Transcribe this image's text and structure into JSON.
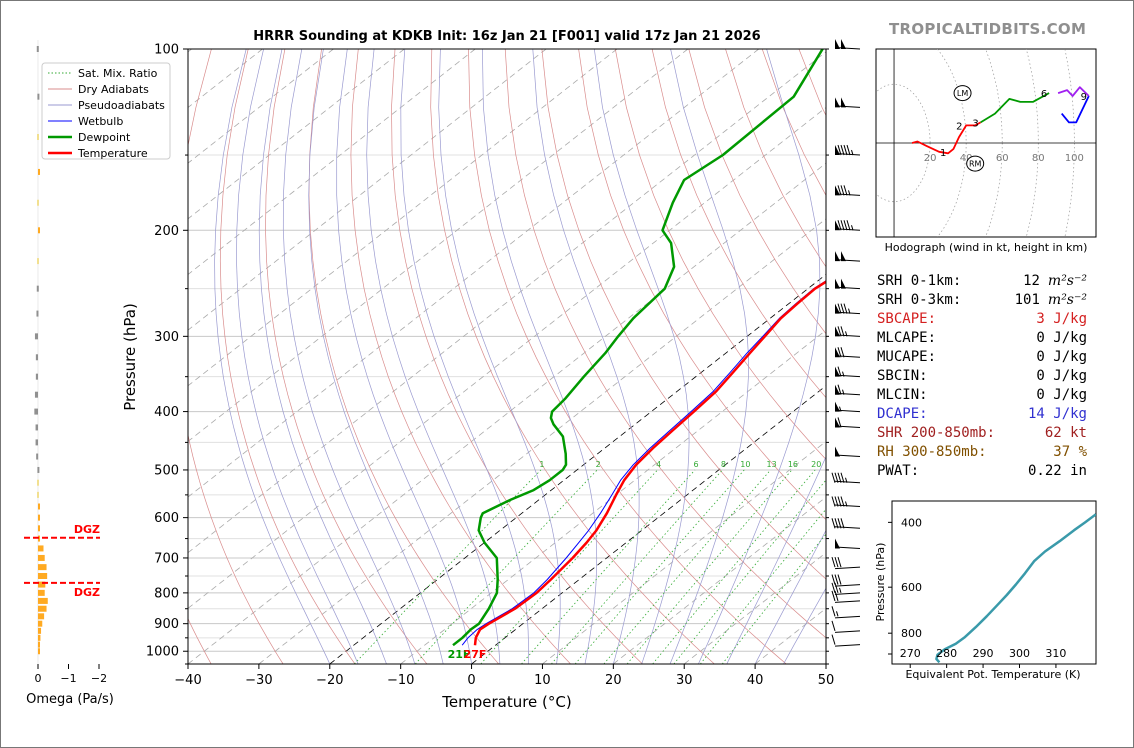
{
  "brand": "TROPICALTIDBITS.COM",
  "colors": {
    "temperature": "#ff0000",
    "dewpoint": "#009900",
    "wetbulb": "#0000ff",
    "dry_adiabat": "#d98c8c",
    "pseudoadiabat": "#9a9ad0",
    "mixing_ratio": "#33aa33",
    "omega": "#ffaa22",
    "theta_e": "#3a9aaa",
    "hodo_low": "#ff0000",
    "hodo_mid": "#009900",
    "hodo_upper": "#0000ff",
    "hodo_top": "#a020f0",
    "cape": "#d42020",
    "dcape": "#3030d0",
    "shear": "#a02020",
    "rh": "#805000"
  },
  "chart_data": [
    {
      "type": "line",
      "id": "skewt",
      "title": "HRRR Sounding at KDKB Init: 16z Jan 21 [F001] valid 17z Jan 21 2026",
      "xlabel": "Temperature (°C)",
      "ylabel": "Pressure (hPa)",
      "xlim": [
        -40,
        50
      ],
      "ylim": [
        1050,
        100
      ],
      "y_scale": "log",
      "x_ticks": [
        -40,
        -30,
        -20,
        -10,
        0,
        10,
        20,
        30,
        40,
        50
      ],
      "y_ticks": [
        100,
        200,
        300,
        400,
        500,
        600,
        700,
        800,
        900,
        1000
      ],
      "grid": true,
      "legend_position": "top-left",
      "legend": [
        "Sat. Mix. Ratio",
        "Dry Adiabats",
        "Pseudoadiabats",
        "Wetbulb",
        "Dewpoint",
        "Temperature"
      ],
      "mixing_ratio_labels": [
        "1",
        "2",
        "4",
        "6",
        "8",
        "10",
        "13",
        "16",
        "20",
        "24",
        "30",
        "36"
      ],
      "surface_labels": {
        "dewpoint": "21F",
        "temperature": "27F"
      },
      "series": [
        {
          "name": "Temperature",
          "points": [
            [
              -2.9,
              977
            ],
            [
              -4.1,
              950
            ],
            [
              -5.0,
              920
            ],
            [
              -4.8,
              900
            ],
            [
              -3.8,
              850
            ],
            [
              -3.6,
              800
            ],
            [
              -4.0,
              760
            ],
            [
              -4.8,
              700
            ],
            [
              -5.6,
              660
            ],
            [
              -6.4,
              630
            ],
            [
              -8.0,
              590
            ],
            [
              -10.0,
              550
            ],
            [
              -11.5,
              520
            ],
            [
              -12.6,
              490
            ],
            [
              -13.2,
              460
            ],
            [
              -13.6,
              430
            ],
            [
              -14.0,
              400
            ],
            [
              -14.5,
              370
            ],
            [
              -15.5,
              345
            ],
            [
              -16.6,
              320
            ],
            [
              -17.5,
              300
            ],
            [
              -18.5,
              280
            ],
            [
              -18.8,
              265
            ],
            [
              -19.0,
              250
            ],
            [
              -18.3,
              235
            ],
            [
              -17.2,
              220
            ],
            [
              -16.0,
              205
            ],
            [
              -15.0,
              195
            ],
            [
              -13.3,
              175
            ],
            [
              -10.8,
              150
            ],
            [
              -8.8,
              135
            ],
            [
              -5.5,
              120
            ],
            [
              -3.0,
              110
            ],
            [
              -1.5,
              100
            ]
          ]
        },
        {
          "name": "Wetbulb",
          "points": [
            [
              -4.7,
              977
            ],
            [
              -5.2,
              950
            ],
            [
              -5.4,
              920
            ],
            [
              -5.2,
              900
            ],
            [
              -4.2,
              850
            ],
            [
              -4.0,
              800
            ],
            [
              -4.5,
              760
            ],
            [
              -5.7,
              700
            ],
            [
              -6.7,
              660
            ],
            [
              -7.5,
              630
            ],
            [
              -8.9,
              590
            ],
            [
              -10.6,
              550
            ],
            [
              -12.0,
              520
            ],
            [
              -13.0,
              490
            ],
            [
              -13.6,
              460
            ],
            [
              -14.0,
              430
            ],
            [
              -14.4,
              400
            ],
            [
              -14.9,
              370
            ],
            [
              -15.9,
              345
            ],
            [
              -17.0,
              320
            ],
            [
              -17.8,
              300
            ],
            [
              -18.7,
              280
            ],
            [
              -19.0,
              265
            ],
            [
              -19.2,
              250
            ],
            [
              -18.5,
              235
            ],
            [
              -17.3,
              220
            ],
            [
              -16.2,
              205
            ],
            [
              -15.2,
              195
            ],
            [
              -13.6,
              175
            ],
            [
              -11.2,
              150
            ],
            [
              -9.3,
              135
            ],
            [
              -6.0,
              120
            ],
            [
              -3.5,
              110
            ],
            [
              -2.0,
              100
            ]
          ]
        },
        {
          "name": "Dewpoint",
          "points": [
            [
              -6.0,
              977
            ],
            [
              -6.0,
              950
            ],
            [
              -6.3,
              920
            ],
            [
              -6.2,
              900
            ],
            [
              -7.5,
              850
            ],
            [
              -9.2,
              800
            ],
            [
              -11.5,
              760
            ],
            [
              -15.5,
              700
            ],
            [
              -20.0,
              660
            ],
            [
              -23.0,
              630
            ],
            [
              -25.0,
              600
            ],
            [
              -25.5,
              590
            ],
            [
              -24.0,
              560
            ],
            [
              -22.5,
              540
            ],
            [
              -22.0,
              520
            ],
            [
              -22.0,
              500
            ],
            [
              -22.5,
              490
            ],
            [
              -24.5,
              470
            ],
            [
              -28.0,
              440
            ],
            [
              -31.5,
              420
            ],
            [
              -33.0,
              410
            ],
            [
              -34.0,
              400
            ],
            [
              -34.5,
              380
            ],
            [
              -35.8,
              350
            ],
            [
              -37.0,
              320
            ],
            [
              -38.2,
              300
            ],
            [
              -39.3,
              280
            ],
            [
              -40.2,
              250
            ],
            [
              -42.8,
              230
            ],
            [
              -47.5,
              210
            ],
            [
              -51.0,
              200
            ],
            [
              -54.5,
              180
            ],
            [
              -57.0,
              165
            ],
            [
              -56.0,
              150
            ],
            [
              -56.5,
              120
            ],
            [
              -61.0,
              100
            ]
          ]
        }
      ]
    },
    {
      "type": "bar",
      "id": "omega",
      "xlabel": "Omega (Pa/s)",
      "x_ticks": [
        0,
        -1,
        -2
      ],
      "xlim": [
        0.25,
        -2.5
      ],
      "dgz_label": "DGZ",
      "dgz_levels": [
        648,
        770
      ],
      "levels": [
        100,
        120,
        140,
        160,
        180,
        200,
        225,
        250,
        275,
        300,
        325,
        350,
        375,
        400,
        425,
        450,
        475,
        500,
        525,
        550,
        575,
        600,
        625,
        650,
        675,
        700,
        725,
        750,
        775,
        800,
        825,
        850,
        875,
        900,
        925,
        950,
        975,
        1000
      ],
      "values": [
        0.04,
        0.02,
        0,
        -0.06,
        0,
        -0.05,
        0,
        0.04,
        0.05,
        0.1,
        0.07,
        0.07,
        0.1,
        0.12,
        0.08,
        0.08,
        0.06,
        0.02,
        0,
        0,
        -0.04,
        -0.02,
        -0.05,
        -0.06,
        -0.18,
        -0.22,
        -0.28,
        -0.3,
        -0.24,
        -0.22,
        -0.32,
        -0.28,
        -0.2,
        -0.14,
        -0.1,
        -0.08,
        -0.06,
        -0.02
      ]
    },
    {
      "type": "line",
      "id": "hodograph",
      "title": "Hodograph (wind in kt, height in km)",
      "x_ticks": [
        20,
        40,
        60,
        80,
        100
      ],
      "xlim": [
        -10,
        112
      ],
      "ylim": [
        -32,
        32
      ],
      "storm_motion_labels": [
        "LM",
        "RM"
      ],
      "storm_motion": {
        "LM": [
          38,
          17
        ],
        "RM": [
          45,
          -7
        ]
      },
      "height_labels": [
        "1",
        "2",
        "3",
        "6",
        "9"
      ],
      "height_label_points": [
        [
          30,
          -3
        ],
        [
          39,
          6
        ],
        [
          48,
          7
        ],
        [
          86,
          17
        ],
        [
          108,
          16
        ]
      ],
      "series": [
        {
          "name": "0-3 km",
          "color_key": "hodo_low",
          "points": [
            [
              10,
              0
            ],
            [
              13,
              0.5
            ],
            [
              18,
              -1
            ],
            [
              25,
              -3
            ],
            [
              30,
              -3.5
            ],
            [
              33,
              -2
            ],
            [
              36,
              2
            ],
            [
              40,
              6
            ],
            [
              45,
              6
            ],
            [
              48,
              7
            ]
          ]
        },
        {
          "name": "3-6 km",
          "color_key": "hodo_mid",
          "points": [
            [
              48,
              7
            ],
            [
              56,
              10
            ],
            [
              64,
              15
            ],
            [
              70,
              14
            ],
            [
              77,
              14
            ],
            [
              86,
              17
            ]
          ]
        },
        {
          "name": "6-9 km",
          "color_key": "hodo_upper",
          "points": [
            [
              93,
              10
            ],
            [
              97,
              7
            ],
            [
              101,
              7
            ],
            [
              108,
              16
            ]
          ]
        },
        {
          "name": "9+ km",
          "color_key": "hodo_top",
          "points": [
            [
              91,
              17
            ],
            [
              96,
              18
            ],
            [
              99,
              16
            ],
            [
              103,
              19
            ],
            [
              108,
              16
            ]
          ]
        }
      ]
    },
    {
      "type": "line",
      "id": "theta_e",
      "xlabel": "Equivalent Pot. Temperature (K)",
      "ylabel": "Pressure (hPa)",
      "x_ticks": [
        270,
        280,
        290,
        300,
        310
      ],
      "xlim": [
        265,
        321
      ],
      "y_ticks": [
        400,
        600,
        800
      ],
      "ylim": [
        970,
        350
      ],
      "series": [
        {
          "name": "Theta-e",
          "points": [
            [
              278,
              960
            ],
            [
              277.2,
              940
            ],
            [
              277.5,
              915
            ],
            [
              279.5,
              885
            ],
            [
              282.5,
              855
            ],
            [
              285,
              820
            ],
            [
              288,
              770
            ],
            [
              291,
              720
            ],
            [
              294,
              670
            ],
            [
              296.5,
              630
            ],
            [
              299,
              590
            ],
            [
              301.5,
              550
            ],
            [
              304,
              510
            ],
            [
              307,
              480
            ],
            [
              311,
              450
            ],
            [
              315,
              420
            ],
            [
              318,
              400
            ],
            [
              321,
              380
            ]
          ]
        }
      ]
    },
    {
      "type": "table",
      "id": "wind_barbs",
      "levels": [
        100,
        125,
        150,
        175,
        200,
        225,
        250,
        275,
        300,
        325,
        350,
        375,
        400,
        425,
        475,
        525,
        575,
        625,
        675,
        725,
        775,
        800,
        825,
        875,
        925,
        975
      ],
      "speeds_kt": [
        100,
        100,
        95,
        85,
        95,
        100,
        100,
        85,
        75,
        70,
        65,
        65,
        55,
        60,
        50,
        45,
        45,
        40,
        50,
        30,
        30,
        25,
        20,
        15,
        10,
        10
      ]
    }
  ],
  "params": [
    {
      "key": "srh01",
      "label": "SRH 0-1km:",
      "value": "12",
      "unit": "m²s⁻²",
      "color_key": "text"
    },
    {
      "key": "srh03",
      "label": "SRH 0-3km:",
      "value": "101",
      "unit": "m²s⁻²",
      "color_key": "text"
    },
    {
      "key": "sbcape",
      "label": "SBCAPE:",
      "value": "3 J/kg",
      "unit": "",
      "color_key": "cape"
    },
    {
      "key": "mlcape",
      "label": "MLCAPE:",
      "value": "0 J/kg",
      "unit": "",
      "color_key": "text"
    },
    {
      "key": "mucape",
      "label": "MUCAPE:",
      "value": "0 J/kg",
      "unit": "",
      "color_key": "text"
    },
    {
      "key": "sbcin",
      "label": "SBCIN:",
      "value": "0 J/kg",
      "unit": "",
      "color_key": "text"
    },
    {
      "key": "mlcin",
      "label": "MLCIN:",
      "value": "0 J/kg",
      "unit": "",
      "color_key": "text"
    },
    {
      "key": "dcape",
      "label": "DCAPE:",
      "value": "14 J/kg",
      "unit": "",
      "color_key": "dcape"
    },
    {
      "key": "shr",
      "label": "SHR 200-850mb:",
      "value": "62 kt",
      "unit": "",
      "color_key": "shear"
    },
    {
      "key": "rh",
      "label": "RH 300-850mb:",
      "value": "37 %",
      "unit": "",
      "color_key": "rh"
    },
    {
      "key": "pwat",
      "label": "PWAT:",
      "value": "0.22 in",
      "unit": "",
      "color_key": "text"
    }
  ]
}
